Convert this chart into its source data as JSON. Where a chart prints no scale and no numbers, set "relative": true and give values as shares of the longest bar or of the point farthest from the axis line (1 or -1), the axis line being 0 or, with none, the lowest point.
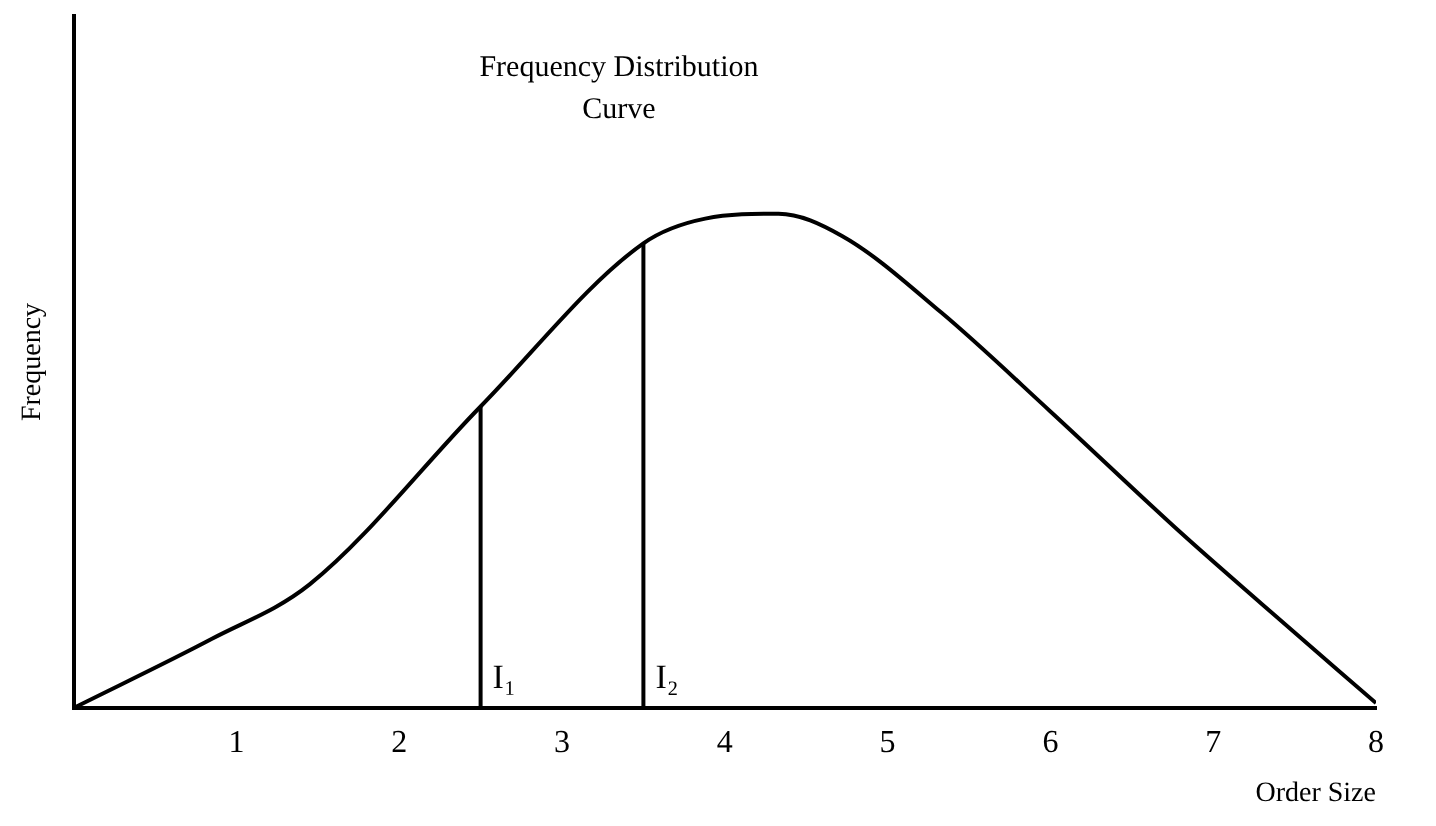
{
  "chart_data": {
    "type": "line",
    "title": "Frequency Distribution Curve",
    "xlabel": "Order Size",
    "ylabel": "Frequency",
    "relative": true,
    "xlim": [
      0,
      8
    ],
    "xticks": [
      1,
      2,
      3,
      4,
      5,
      6,
      7,
      8
    ],
    "series": [
      {
        "color": "#000000",
        "x": [
          0,
          0.85,
          1.45,
          2.5,
          3.5,
          3.88,
          4.33,
          4.72,
          5.33,
          6.0,
          6.8,
          7.3,
          8
        ],
        "values": [
          0,
          0.14,
          0.25,
          0.61,
          0.94,
          0.99,
          1,
          0.955,
          0.8,
          0.6,
          0.355,
          0.21,
          0.01
        ]
      }
    ],
    "ref_lines": [
      {
        "axis": "x",
        "value": 2.5,
        "label": "I₁"
      },
      {
        "axis": "x",
        "value": 3.5,
        "label": "I₂"
      }
    ],
    "grid": false,
    "legend": false,
    "marker": "none",
    "line_style": "solid"
  }
}
